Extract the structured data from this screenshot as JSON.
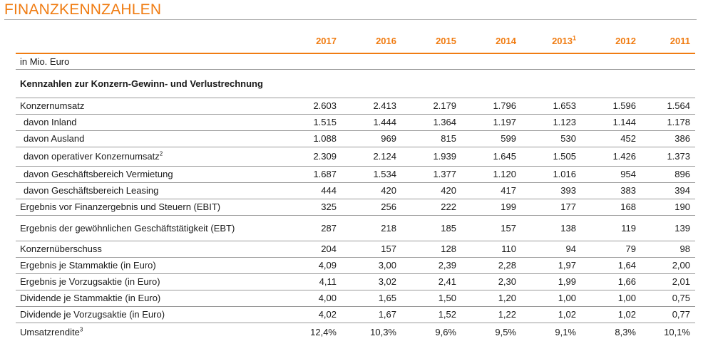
{
  "title": "FINANZKENNZAHLEN",
  "accent_color": "#f07c12",
  "columns": [
    {
      "label": "2017",
      "sup": ""
    },
    {
      "label": "2016",
      "sup": ""
    },
    {
      "label": "2015",
      "sup": ""
    },
    {
      "label": "2014",
      "sup": ""
    },
    {
      "label": "2013",
      "sup": "1"
    },
    {
      "label": "2012",
      "sup": ""
    },
    {
      "label": "2011",
      "sup": ""
    }
  ],
  "unit_row": "in Mio. Euro",
  "section_header": "Kennzahlen zur Konzern-Gewinn- und Verlustrechnung",
  "rows": [
    {
      "label": "Konzernumsatz",
      "sup": "",
      "sub": false,
      "values": [
        "2.603",
        "2.413",
        "2.179",
        "1.796",
        "1.653",
        "1.596",
        "1.564"
      ]
    },
    {
      "label": "davon Inland",
      "sup": "",
      "sub": true,
      "values": [
        "1.515",
        "1.444",
        "1.364",
        "1.197",
        "1.123",
        "1.144",
        "1.178"
      ]
    },
    {
      "label": "davon Ausland",
      "sup": "",
      "sub": true,
      "values": [
        "1.088",
        "969",
        "815",
        "599",
        "530",
        "452",
        "386"
      ]
    },
    {
      "label": "davon operativer Konzernumsatz",
      "sup": "2",
      "sub": true,
      "values": [
        "2.309",
        "2.124",
        "1.939",
        "1.645",
        "1.505",
        "1.426",
        "1.373"
      ]
    },
    {
      "label": "davon Geschäftsbereich Vermietung",
      "sup": "",
      "sub": true,
      "values": [
        "1.687",
        "1.534",
        "1.377",
        "1.120",
        "1.016",
        "954",
        "896"
      ]
    },
    {
      "label": "davon Geschäftsbereich Leasing",
      "sup": "",
      "sub": true,
      "values": [
        "444",
        "420",
        "420",
        "417",
        "393",
        "383",
        "394"
      ]
    },
    {
      "label": "Ergebnis vor Finanzergebnis und Steuern (EBIT)",
      "sup": "",
      "sub": false,
      "values": [
        "325",
        "256",
        "222",
        "199",
        "177",
        "168",
        "190"
      ]
    },
    {
      "label": "Ergebnis der gewöhnlichen Geschäftstätigkeit (EBT)",
      "sup": "",
      "sub": false,
      "values": [
        "287",
        "218",
        "185",
        "157",
        "138",
        "119",
        "139"
      ]
    },
    {
      "label": "Konzernüberschuss",
      "sup": "",
      "sub": false,
      "values": [
        "204",
        "157",
        "128",
        "110",
        "94",
        "79",
        "98"
      ]
    },
    {
      "label": "Ergebnis je Stammaktie (in Euro)",
      "sup": "",
      "sub": false,
      "values": [
        "4,09",
        "3,00",
        "2,39",
        "2,28",
        "1,97",
        "1,64",
        "2,00"
      ]
    },
    {
      "label": "Ergebnis je Vorzugsaktie (in Euro)",
      "sup": "",
      "sub": false,
      "values": [
        "4,11",
        "3,02",
        "2,41",
        "2,30",
        "1,99",
        "1,66",
        "2,01"
      ]
    },
    {
      "label": "Dividende je Stammaktie (in Euro)",
      "sup": "",
      "sub": false,
      "values": [
        "4,00",
        "1,65",
        "1,50",
        "1,20",
        "1,00",
        "1,00",
        "0,75"
      ]
    },
    {
      "label": "Dividende je Vorzugsaktie (in Euro)",
      "sup": "",
      "sub": false,
      "values": [
        "4,02",
        "1,67",
        "1,52",
        "1,22",
        "1,02",
        "1,02",
        "0,77"
      ]
    },
    {
      "label": "Umsatzrendite",
      "sup": "3",
      "sub": false,
      "values": [
        "12,4%",
        "10,3%",
        "9,6%",
        "9,5%",
        "9,1%",
        "8,3%",
        "10,1%"
      ]
    }
  ]
}
